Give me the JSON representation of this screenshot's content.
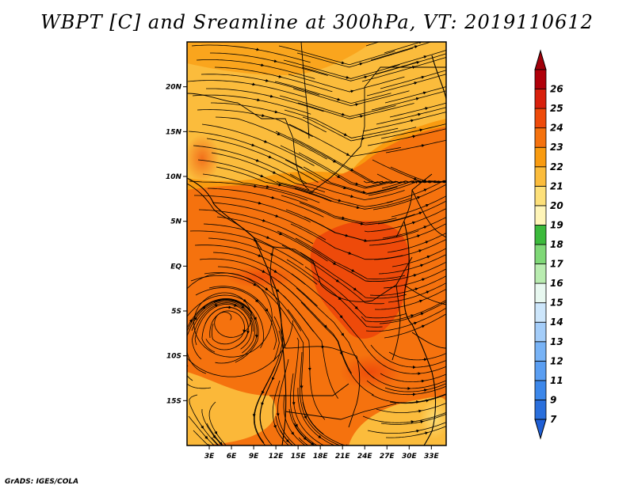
{
  "title": "WBPT [C] and Sreamline at 300hPa, VT: 2019110612",
  "footer": "GrADS: IGES/COLA",
  "map": {
    "lon_range": [
      0,
      35
    ],
    "lat_range": [
      -20,
      25
    ],
    "x_ticks": [
      {
        "lon": 3,
        "label": "3E"
      },
      {
        "lon": 6,
        "label": "6E"
      },
      {
        "lon": 9,
        "label": "9E"
      },
      {
        "lon": 12,
        "label": "12E"
      },
      {
        "lon": 15,
        "label": "15E"
      },
      {
        "lon": 18,
        "label": "18E"
      },
      {
        "lon": 21,
        "label": "21E"
      },
      {
        "lon": 24,
        "label": "24E"
      },
      {
        "lon": 27,
        "label": "27E"
      },
      {
        "lon": 30,
        "label": "30E"
      },
      {
        "lon": 33,
        "label": "33E"
      }
    ],
    "y_ticks": [
      {
        "lat": 20,
        "label": "20N"
      },
      {
        "lat": 15,
        "label": "15N"
      },
      {
        "lat": 10,
        "label": "10N"
      },
      {
        "lat": 5,
        "label": "5N"
      },
      {
        "lat": 0,
        "label": "EQ"
      },
      {
        "lat": -5,
        "label": "5S"
      },
      {
        "lat": -10,
        "label": "10S"
      },
      {
        "lat": -15,
        "label": "15S"
      }
    ],
    "cyclone_center": {
      "lon": 5.5,
      "lat": -6
    }
  },
  "colorbar": {
    "labels": [
      "7",
      "9",
      "11",
      "12",
      "13",
      "14",
      "15",
      "16",
      "17",
      "18",
      "19",
      "20",
      "21",
      "22",
      "23",
      "24",
      "25",
      "26"
    ],
    "colors": [
      "#2a6fdc",
      "#3c87ea",
      "#5a9ef2",
      "#78b3f6",
      "#a4cdf9",
      "#cde6fb",
      "#e8f8f0",
      "#b9ecb0",
      "#7fd877",
      "#3cba3c",
      "#fff5b8",
      "#fde07a",
      "#fbbc3c",
      "#f99b10",
      "#f5720e",
      "#ee4a0a",
      "#d8200c",
      "#b0000a"
    ],
    "low_color": "#1f5fd6",
    "high_color": "#a0000a"
  }
}
